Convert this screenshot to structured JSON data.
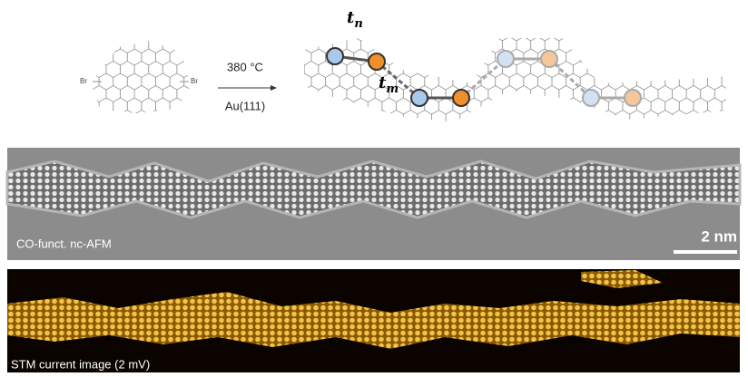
{
  "scheme": {
    "precursor": {
      "left_group": "Br",
      "right_group": "Br"
    },
    "conditions": {
      "temperature": "380 °C",
      "substrate": "Au(111)"
    },
    "hoppings": [
      {
        "symbol": "t",
        "subscript": "n"
      },
      {
        "symbol": "t",
        "subscript": "m"
      }
    ]
  },
  "afm": {
    "caption": "CO-funct. nc-AFM",
    "scale_bar": "2 nm"
  },
  "stm": {
    "caption": "STM current image (2 mV)"
  }
}
